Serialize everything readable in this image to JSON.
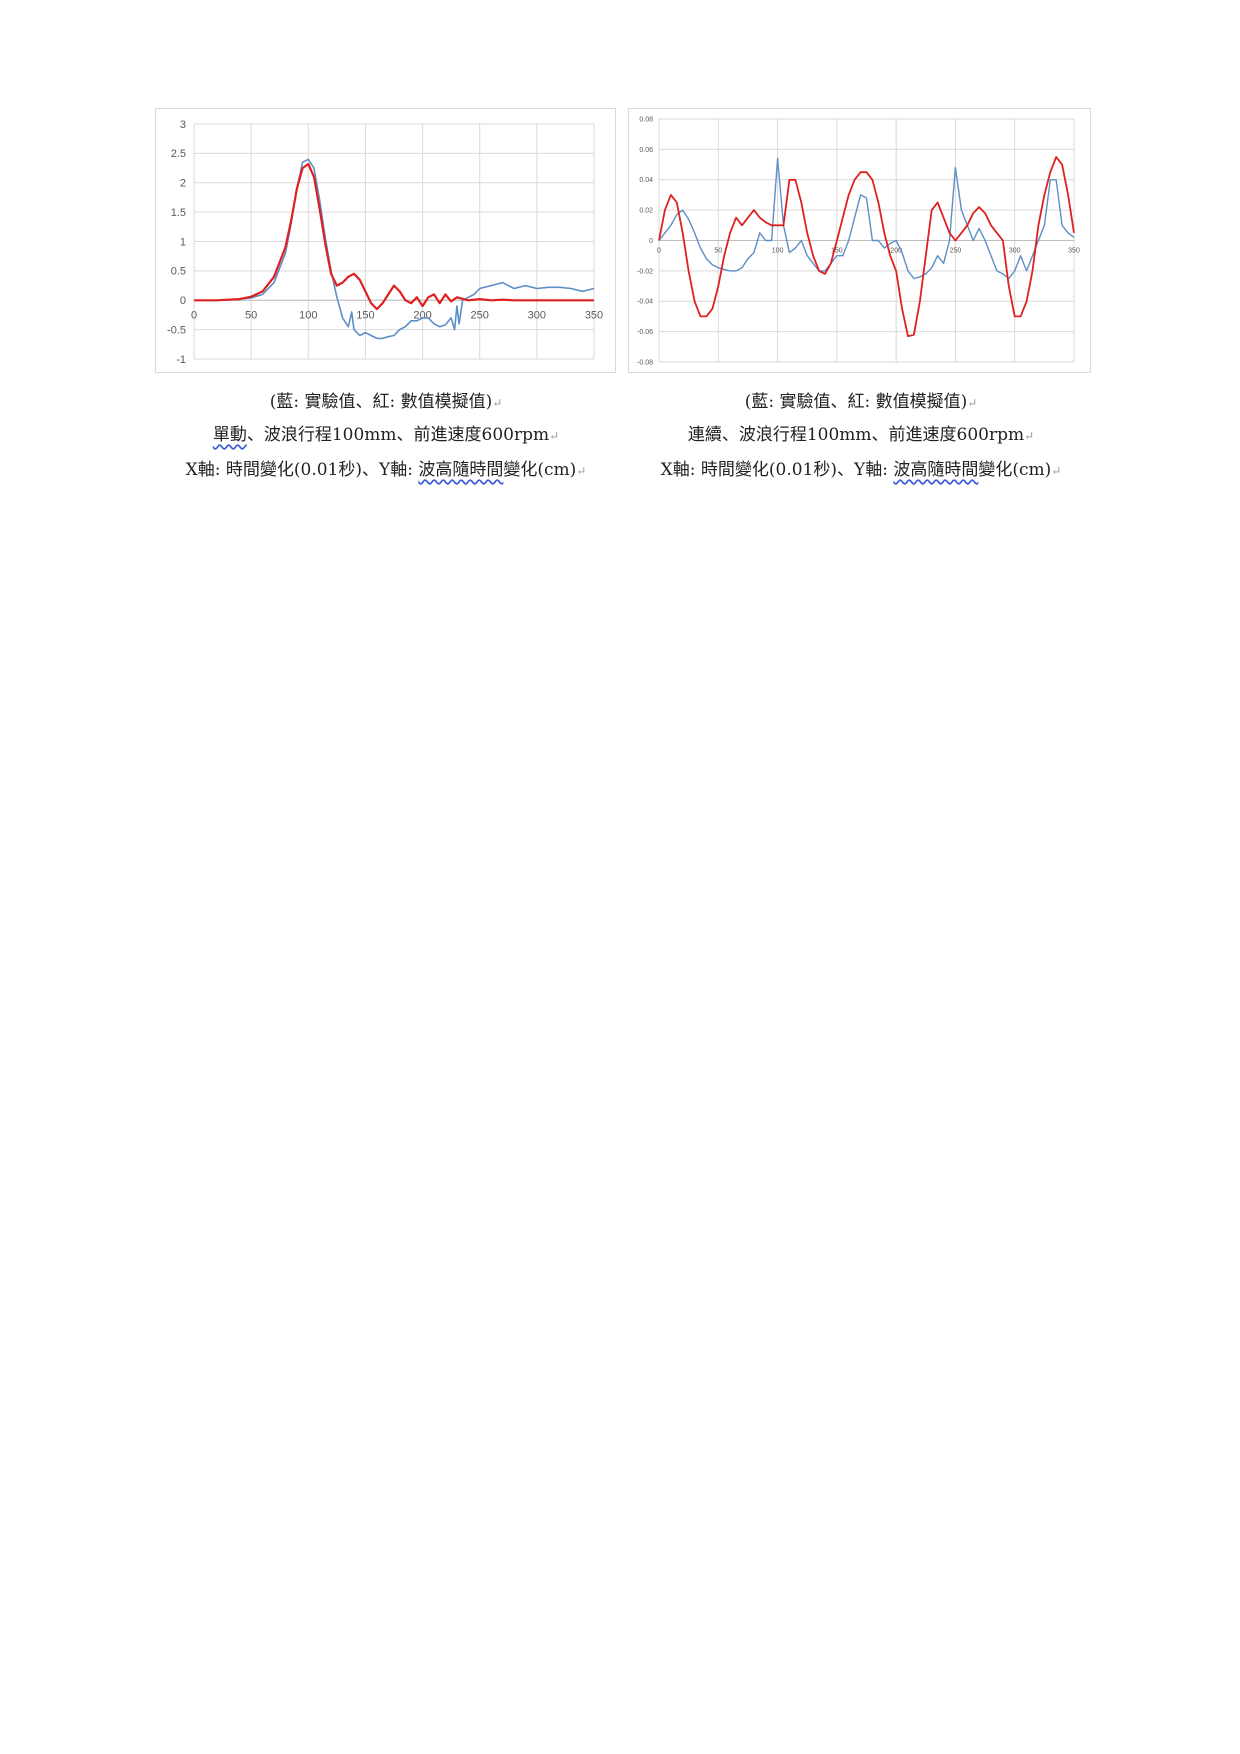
{
  "charts": [
    {
      "id": "left",
      "chart_data": {
        "type": "line",
        "title": "",
        "xlabel": "",
        "ylabel": "",
        "xlim": [
          0,
          350
        ],
        "ylim": [
          -1,
          3
        ],
        "xticks": [
          0,
          50,
          100,
          150,
          200,
          250,
          300,
          350
        ],
        "yticks": [
          -1,
          -0.5,
          0,
          0.5,
          1,
          1.5,
          2,
          2.5,
          3
        ],
        "grid": true,
        "series": [
          {
            "color": "#5b8fc7",
            "x": [
              0,
              20,
              40,
              50,
              60,
              70,
              80,
              85,
              90,
              95,
              100,
              105,
              110,
              115,
              120,
              125,
              130,
              135,
              138,
              140,
              145,
              150,
              155,
              160,
              165,
              170,
              175,
              180,
              185,
              190,
              195,
              200,
              205,
              210,
              215,
              220,
              225,
              228,
              230,
              232,
              235,
              240,
              245,
              250,
              260,
              270,
              280,
              290,
              300,
              310,
              320,
              330,
              340,
              350
            ],
            "y": [
              0,
              0,
              0.02,
              0.04,
              0.1,
              0.3,
              0.8,
              1.3,
              1.9,
              2.35,
              2.4,
              2.25,
              1.7,
              1.05,
              0.5,
              0.05,
              -0.3,
              -0.45,
              -0.2,
              -0.5,
              -0.6,
              -0.55,
              -0.6,
              -0.65,
              -0.65,
              -0.62,
              -0.6,
              -0.5,
              -0.45,
              -0.35,
              -0.35,
              -0.3,
              -0.3,
              -0.4,
              -0.45,
              -0.42,
              -0.3,
              -0.5,
              -0.1,
              -0.4,
              0.0,
              0.05,
              0.1,
              0.2,
              0.25,
              0.3,
              0.2,
              0.25,
              0.2,
              0.22,
              0.22,
              0.2,
              0.15,
              0.2
            ]
          },
          {
            "color": "#e02020",
            "x": [
              0,
              20,
              40,
              50,
              60,
              70,
              80,
              85,
              90,
              95,
              100,
              105,
              110,
              115,
              120,
              125,
              130,
              135,
              140,
              145,
              150,
              155,
              160,
              165,
              170,
              175,
              180,
              185,
              190,
              195,
              200,
              205,
              210,
              215,
              220,
              225,
              230,
              240,
              250,
              260,
              270,
              280,
              290,
              300,
              310,
              320,
              330,
              340,
              350
            ],
            "y": [
              0,
              0,
              0.02,
              0.06,
              0.15,
              0.4,
              0.9,
              1.35,
              1.9,
              2.25,
              2.32,
              2.1,
              1.55,
              0.95,
              0.45,
              0.25,
              0.3,
              0.4,
              0.45,
              0.35,
              0.15,
              -0.05,
              -0.15,
              -0.05,
              0.1,
              0.25,
              0.15,
              0.0,
              -0.05,
              0.05,
              -0.1,
              0.05,
              0.1,
              -0.05,
              0.1,
              -0.02,
              0.05,
              0.0,
              0.02,
              0.0,
              0.01,
              0.0,
              0.0,
              0.0,
              0.0,
              0.0,
              0.0,
              0.0,
              0.0
            ]
          }
        ]
      }
    },
    {
      "id": "right",
      "chart_data": {
        "type": "line",
        "title": "",
        "xlabel": "",
        "ylabel": "",
        "xlim": [
          0,
          350
        ],
        "ylim": [
          -0.08,
          0.08
        ],
        "xticks": [
          0,
          50,
          100,
          150,
          200,
          250,
          300,
          350
        ],
        "yticks": [
          0.08,
          0.06,
          0.04,
          0.02,
          0,
          -0.02,
          -0.04,
          -0.06,
          -0.08
        ],
        "ytick_labels": [
          "0.08",
          "0.06",
          "0.04",
          "0.02",
          "0",
          "-0.02",
          "-0.04",
          "-0.06",
          "-0.08"
        ],
        "grid": true,
        "series": [
          {
            "color": "#5b8fc7",
            "x": [
              0,
              5,
              10,
              15,
              20,
              25,
              30,
              35,
              40,
              45,
              50,
              55,
              60,
              65,
              70,
              75,
              80,
              85,
              90,
              95,
              100,
              105,
              110,
              115,
              120,
              125,
              130,
              135,
              140,
              145,
              150,
              155,
              160,
              165,
              170,
              175,
              180,
              185,
              190,
              195,
              200,
              205,
              210,
              215,
              220,
              225,
              230,
              235,
              240,
              245,
              250,
              255,
              260,
              265,
              270,
              275,
              280,
              285,
              290,
              295,
              300,
              305,
              310,
              315,
              320,
              325,
              330,
              335,
              340,
              345,
              350
            ],
            "y": [
              0.0,
              0.005,
              0.01,
              0.017,
              0.02,
              0.014,
              0.005,
              -0.005,
              -0.012,
              -0.016,
              -0.018,
              -0.019,
              -0.02,
              -0.02,
              -0.018,
              -0.012,
              -0.008,
              0.005,
              0.0,
              0.0,
              0.054,
              0.01,
              -0.008,
              -0.005,
              0.0,
              -0.01,
              -0.015,
              -0.02,
              -0.02,
              -0.015,
              -0.01,
              -0.01,
              0.0,
              0.015,
              0.03,
              0.028,
              0.0,
              0.0,
              -0.005,
              -0.002,
              0.0,
              -0.008,
              -0.02,
              -0.025,
              -0.024,
              -0.022,
              -0.018,
              -0.01,
              -0.015,
              0.0,
              0.048,
              0.02,
              0.01,
              0.0,
              0.008,
              0.0,
              -0.01,
              -0.02,
              -0.022,
              -0.025,
              -0.02,
              -0.01,
              -0.02,
              -0.01,
              0.0,
              0.01,
              0.04,
              0.04,
              0.01,
              0.005,
              0.002
            ]
          },
          {
            "color": "#e02020",
            "x": [
              0,
              5,
              10,
              15,
              20,
              25,
              30,
              35,
              40,
              45,
              50,
              55,
              60,
              65,
              70,
              75,
              80,
              85,
              90,
              95,
              100,
              105,
              110,
              115,
              120,
              125,
              130,
              135,
              140,
              145,
              150,
              155,
              160,
              165,
              170,
              175,
              180,
              185,
              190,
              195,
              200,
              205,
              210,
              215,
              220,
              225,
              230,
              235,
              240,
              245,
              250,
              255,
              260,
              265,
              270,
              275,
              280,
              285,
              290,
              295,
              300,
              305,
              310,
              315,
              320,
              325,
              330,
              335,
              340,
              345,
              350
            ],
            "y": [
              0.0,
              0.02,
              0.03,
              0.025,
              0.005,
              -0.02,
              -0.04,
              -0.05,
              -0.05,
              -0.045,
              -0.03,
              -0.01,
              0.005,
              0.015,
              0.01,
              0.015,
              0.02,
              0.015,
              0.012,
              0.01,
              0.01,
              0.01,
              0.04,
              0.04,
              0.025,
              0.005,
              -0.01,
              -0.02,
              -0.022,
              -0.015,
              0.0,
              0.015,
              0.03,
              0.04,
              0.045,
              0.045,
              0.04,
              0.025,
              0.005,
              -0.01,
              -0.02,
              -0.045,
              -0.063,
              -0.062,
              -0.04,
              -0.01,
              0.02,
              0.025,
              0.015,
              0.005,
              0.0,
              0.005,
              0.01,
              0.018,
              0.022,
              0.018,
              0.01,
              0.005,
              0.0,
              -0.03,
              -0.05,
              -0.05,
              -0.04,
              -0.02,
              0.01,
              0.03,
              0.045,
              0.055,
              0.05,
              0.03,
              0.005
            ]
          }
        ]
      }
    }
  ],
  "captions": {
    "left": {
      "legend": "(藍: 實驗值、紅: 數值模擬值)",
      "line2_word": "單動",
      "line2_rest": "、波浪行程100mm、前進速度600rpm",
      "line3_start": "X軸: 時間變化(0.01秒)、Y軸: ",
      "line3_word": "波高隨時間",
      "line3_end": "變化(cm)"
    },
    "right": {
      "legend": "(藍: 實驗值、紅: 數值模擬值)",
      "line2": "連續、波浪行程100mm、前進速度600rpm",
      "line3_start": "X軸: 時間變化(0.01秒)、Y軸: ",
      "line3_word": "波高隨時間",
      "line3_end": "變化(cm)"
    }
  },
  "marks": {
    "paragraph": "↵"
  }
}
